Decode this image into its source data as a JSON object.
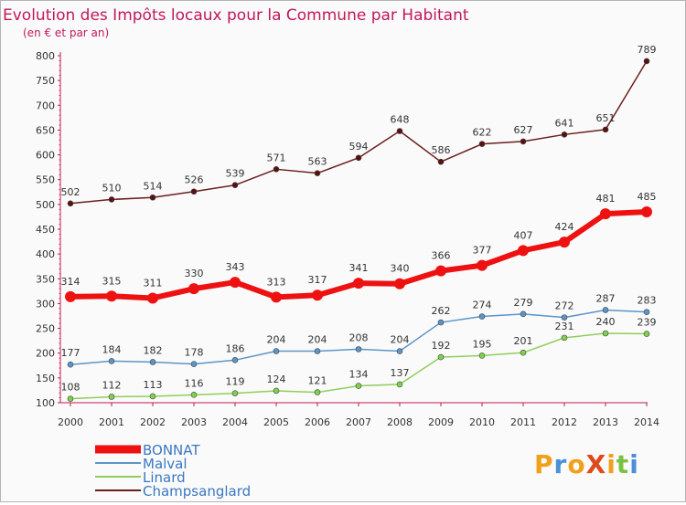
{
  "chart_data": {
    "type": "line",
    "title": "Evolution des Impôts locaux pour la Commune par Habitant",
    "subtitle": "(en € et par an)",
    "xlabel": "",
    "ylabel": "",
    "ylim": [
      100,
      800
    ],
    "yticks": [
      100,
      150,
      200,
      250,
      300,
      350,
      400,
      450,
      500,
      550,
      600,
      650,
      700,
      750,
      800
    ],
    "x": [
      "2000",
      "2001",
      "2002",
      "2003",
      "2004",
      "2005",
      "2006",
      "2007",
      "2008",
      "2009",
      "2010",
      "2011",
      "2012",
      "2013",
      "2014"
    ],
    "grid": false,
    "legend_position": "bottom-left",
    "series": [
      {
        "name": "Champsanglard",
        "color": "#6b1f1f",
        "marker": "#5a1010",
        "values": [
          502,
          510,
          514,
          526,
          539,
          571,
          563,
          594,
          648,
          586,
          622,
          627,
          641,
          651,
          789
        ]
      },
      {
        "name": "Linard",
        "color": "#8fce5a",
        "marker": "#7cd24a",
        "values": [
          108,
          112,
          113,
          116,
          119,
          124,
          121,
          134,
          137,
          192,
          195,
          201,
          231,
          240,
          239
        ]
      },
      {
        "name": "Malval",
        "color": "#5b95c8",
        "marker": "#5b95c8",
        "values": [
          177,
          184,
          182,
          178,
          186,
          204,
          204,
          208,
          204,
          262,
          274,
          279,
          272,
          287,
          283
        ]
      },
      {
        "name": "BONNAT",
        "color": "#ee1111",
        "marker": "#ee1111",
        "values": [
          314,
          315,
          311,
          330,
          343,
          313,
          317,
          341,
          340,
          366,
          377,
          407,
          424,
          481,
          485
        ]
      }
    ],
    "legend_order": [
      "BONNAT",
      "Malval",
      "Linard",
      "Champsanglard"
    ]
  },
  "logo": {
    "text": "ProXiti"
  },
  "colors": {
    "title": "#c2185b",
    "axis": "#c2185b",
    "label": "#333333"
  }
}
